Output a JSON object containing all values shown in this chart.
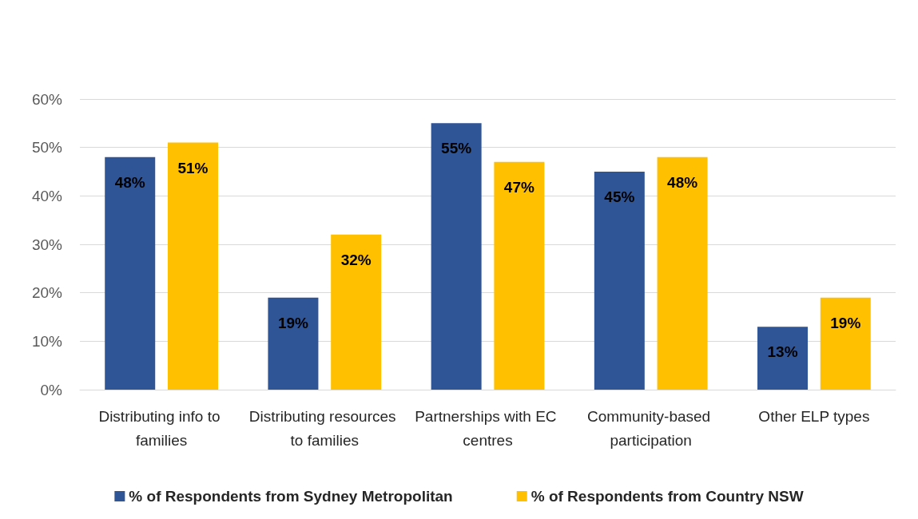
{
  "chart_data": {
    "type": "bar",
    "categories": [
      "Distributing info to families",
      "Distributing resources to families",
      "Partnerships with EC centres",
      "Community-based participation",
      "Other ELP types"
    ],
    "series": [
      {
        "name": "% of Respondents from Sydney Metropolitan",
        "color": "#2f5597",
        "values": [
          48,
          19,
          55,
          45,
          13
        ],
        "value_labels": [
          "48%",
          "19%",
          "55%",
          "45%",
          "13%"
        ]
      },
      {
        "name": "% of Respondents from Country NSW",
        "color": "#ffc000",
        "values": [
          51,
          32,
          47,
          48,
          19
        ],
        "value_labels": [
          "51%",
          "32%",
          "47%",
          "48%",
          "19%"
        ]
      }
    ],
    "ylim": [
      0,
      60
    ],
    "yticks": [
      {
        "value": 0,
        "label": "0%"
      },
      {
        "value": 10,
        "label": "10%"
      },
      {
        "value": 20,
        "label": "20%"
      },
      {
        "value": 30,
        "label": "30%"
      },
      {
        "value": 40,
        "label": "40%"
      },
      {
        "value": 50,
        "label": "50%"
      },
      {
        "value": 60,
        "label": "60%"
      }
    ],
    "grid": "y",
    "legend": "bottom"
  }
}
